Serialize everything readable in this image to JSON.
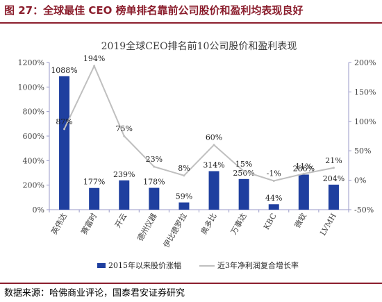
{
  "figure": {
    "title": "图 27：全球最佳 CEO 榜单排名靠前公司股价和盈利均表现良好",
    "source": "数据来源：哈佛商业评论，国泰君安证券研究"
  },
  "colors": {
    "accent": "#8b1e2d",
    "bar": "#1f3f9f",
    "line": "#bfbfbf",
    "axis": "#9a9ac8"
  },
  "chart_data": {
    "type": "bar",
    "title": "2019全球CEO排名前10公司股价和盈利表现",
    "categories": [
      "英伟达",
      "赛富时",
      "开云",
      "德州仪器",
      "伊比德罗拉",
      "奥多比",
      "万事达",
      "KBC",
      "微软",
      "LVMH"
    ],
    "series": [
      {
        "name": "2015年以来股价涨幅",
        "type": "bar",
        "axis": "left",
        "values": [
          1088,
          177,
          239,
          178,
          59,
          314,
          250,
          44,
          286,
          204
        ],
        "labels": [
          "1088%",
          "177%",
          "239%",
          "178%",
          "59%",
          "314%",
          "250%",
          "44%",
          "286%",
          "204%"
        ]
      },
      {
        "name": "近3年净利润复合增长率",
        "type": "line",
        "axis": "right",
        "values": [
          87,
          194,
          75,
          23,
          8,
          60,
          15,
          -1,
          11,
          21
        ],
        "labels": [
          "87%",
          "194%",
          "75%",
          "23%",
          "8%",
          "60%",
          "15%",
          "-1%",
          "11%",
          "21%"
        ]
      }
    ],
    "y_left": {
      "min": 0,
      "max": 1200,
      "ticks": [
        0,
        200,
        400,
        600,
        800,
        1000,
        1200
      ],
      "tick_labels": [
        "0%",
        "200%",
        "400%",
        "600%",
        "800%",
        "1000%",
        "1200%"
      ]
    },
    "y_right": {
      "min": -50,
      "max": 200,
      "ticks": [
        -50,
        0,
        50,
        100,
        150,
        200
      ],
      "tick_labels": [
        "-50%",
        "0%",
        "50%",
        "100%",
        "150%",
        "200%"
      ]
    },
    "legend": "bottom",
    "grid": false
  }
}
